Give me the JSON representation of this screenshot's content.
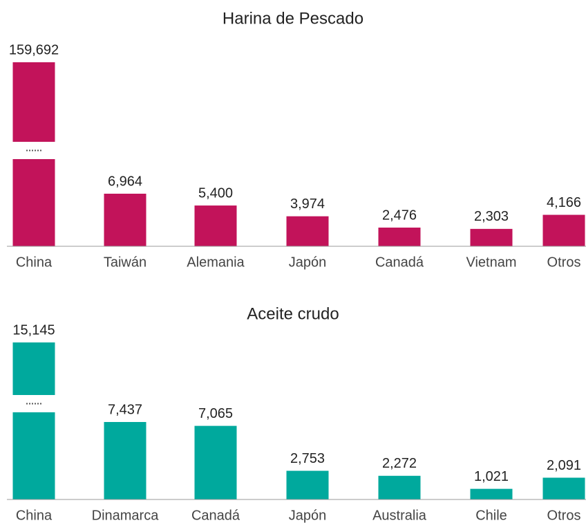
{
  "chart_data": [
    {
      "type": "bar",
      "title": "Harina de Pescado",
      "categories": [
        "China",
        "Taiwán",
        "Alemania",
        "Japón",
        "Canadá",
        "Vietnam",
        "Otros"
      ],
      "values": [
        159692,
        6964,
        5400,
        3974,
        2476,
        2303,
        4166
      ],
      "value_labels": [
        "159,692",
        "6,964",
        "5,400",
        "3,974",
        "2,476",
        "2,303",
        "4,166"
      ],
      "color": "#c2135a"
    },
    {
      "type": "bar",
      "title": "Aceite crudo",
      "categories": [
        "China",
        "Dinamarca",
        "Canadá",
        "Japón",
        "Australia",
        "Chile",
        "Otros"
      ],
      "values": [
        15145,
        7437,
        7065,
        2753,
        2272,
        1021,
        2091
      ],
      "value_labels": [
        "15,145",
        "7,437",
        "7,065",
        "2,753",
        "2,272",
        "1,021",
        "2,091"
      ],
      "color": "#00a99d"
    }
  ]
}
